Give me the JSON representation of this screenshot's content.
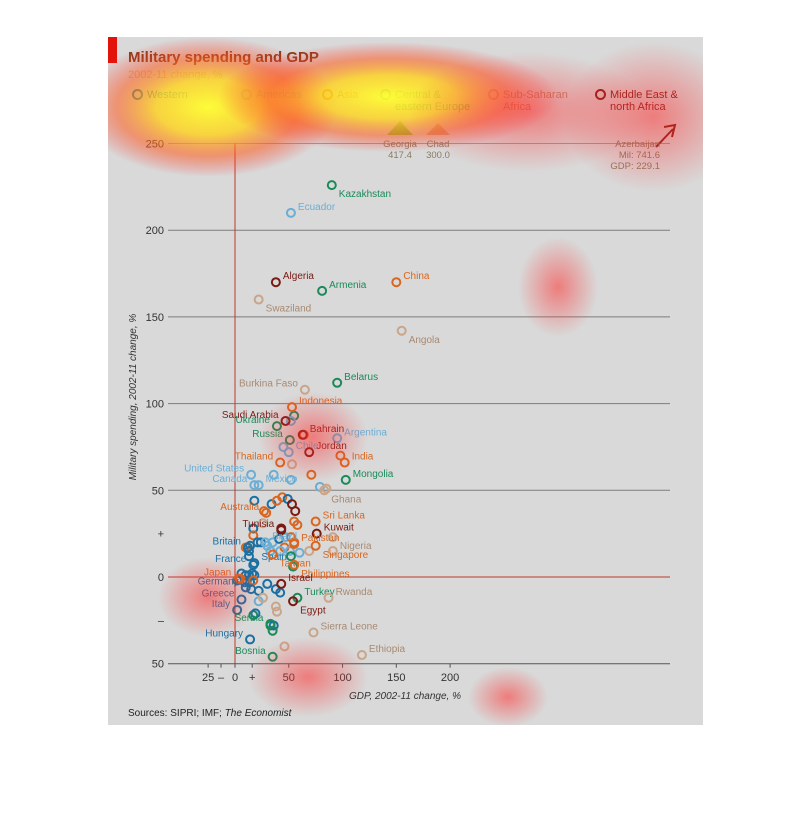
{
  "chart_data": {
    "type": "scatter",
    "title": "Military spending and GDP",
    "subtitle": "2002-11 change, %",
    "xlabel": "GDP, 2002-11 change, %",
    "ylabel": "Military spending, 2002-11 change, %",
    "xlim": [
      -25,
      200
    ],
    "ylim": [
      -50,
      250
    ],
    "x_ticks": [
      "25",
      "–",
      "0",
      "+",
      "50",
      "100",
      "150",
      "200"
    ],
    "y_ticks": [
      "50",
      "–",
      "0",
      "+",
      "50",
      "100",
      "150",
      "200",
      "250"
    ],
    "grid": "horizontal",
    "legend_position": "top",
    "groups": [
      {
        "key": "western",
        "name": "Western",
        "color": "#1a6fa3"
      },
      {
        "key": "americas",
        "name": "Americas",
        "color": "#6aaed6"
      },
      {
        "key": "asia",
        "name": "Asia",
        "color": "#d9661f"
      },
      {
        "key": "cee",
        "name": "Central & eastern Europe",
        "color": "#1a8a5a"
      },
      {
        "key": "ssa",
        "name": "Sub-Saharan Africa",
        "color": "#c9a58a"
      },
      {
        "key": "mena",
        "name": "Middle East & north Africa",
        "color": "#7a1a12"
      }
    ],
    "legend_text": {
      "western": "Western",
      "americas": "Americas",
      "asia": "Asia",
      "cee_1": "Central &",
      "cee_2": "eastern Europe",
      "ssa_1": "Sub-Saharan",
      "ssa_2": "Africa",
      "mena_1": "Middle East &",
      "mena_2": "north Africa"
    },
    "labeled_points": [
      {
        "label": "Kazakhstan",
        "x": 90,
        "y": 226,
        "group": "cee"
      },
      {
        "label": "Ecuador",
        "x": 52,
        "y": 210,
        "group": "americas"
      },
      {
        "label": "Algeria",
        "x": 38,
        "y": 170,
        "group": "mena"
      },
      {
        "label": "China",
        "x": 150,
        "y": 170,
        "group": "asia"
      },
      {
        "label": "Armenia",
        "x": 81,
        "y": 165,
        "group": "cee"
      },
      {
        "label": "Swaziland",
        "x": 22,
        "y": 160,
        "group": "ssa"
      },
      {
        "label": "Angola",
        "x": 155,
        "y": 142,
        "group": "ssa"
      },
      {
        "label": "Belarus",
        "x": 95,
        "y": 112,
        "group": "cee"
      },
      {
        "label": "Burkina Faso",
        "x": 65,
        "y": 108,
        "group": "ssa"
      },
      {
        "label": "Saudi Arabia",
        "x": 47,
        "y": 90,
        "group": "mena"
      },
      {
        "label": "Indonesia",
        "x": 53,
        "y": 98,
        "group": "asia"
      },
      {
        "label": "Ukraine",
        "x": 39,
        "y": 87,
        "group": "cee"
      },
      {
        "label": "Bahrain",
        "x": 63,
        "y": 82,
        "group": "mena"
      },
      {
        "label": "Argentina",
        "x": 95,
        "y": 80,
        "group": "americas"
      },
      {
        "label": "Russia",
        "x": 51,
        "y": 79,
        "group": "cee"
      },
      {
        "label": "Chile",
        "x": 50,
        "y": 72,
        "group": "americas"
      },
      {
        "label": "Jordan",
        "x": 69,
        "y": 72,
        "group": "mena"
      },
      {
        "label": "Thailand",
        "x": 42,
        "y": 66,
        "group": "asia"
      },
      {
        "label": "India",
        "x": 102,
        "y": 66,
        "group": "asia"
      },
      {
        "label": "United States",
        "x": 15,
        "y": 59,
        "group": "americas"
      },
      {
        "label": "Mongolia",
        "x": 103,
        "y": 56,
        "group": "cee"
      },
      {
        "label": "Ghana",
        "x": 83,
        "y": 50,
        "group": "ssa"
      },
      {
        "label": "Canada",
        "x": 18,
        "y": 53,
        "group": "americas"
      },
      {
        "label": "Mexico",
        "x": 22,
        "y": 53,
        "group": "americas"
      },
      {
        "label": "Australia",
        "x": 29,
        "y": 37,
        "group": "asia"
      },
      {
        "label": "Sri Lanka",
        "x": 75,
        "y": 32,
        "group": "asia"
      },
      {
        "label": "Tunisia",
        "x": 43,
        "y": 27,
        "group": "mena"
      },
      {
        "label": "Kuwait",
        "x": 76,
        "y": 25,
        "group": "mena"
      },
      {
        "label": "Nigeria",
        "x": 91,
        "y": 23,
        "group": "ssa"
      },
      {
        "label": "Britain",
        "x": 12,
        "y": 17,
        "group": "western"
      },
      {
        "label": "Brazil",
        "x": 28,
        "y": 20,
        "group": "americas"
      },
      {
        "label": "Pakistan",
        "x": 55,
        "y": 19,
        "group": "asia"
      },
      {
        "label": "Singapore",
        "x": 75,
        "y": 18,
        "group": "asia"
      },
      {
        "label": "France",
        "x": 17,
        "y": 7,
        "group": "western"
      },
      {
        "label": "Spain",
        "x": 18,
        "y": 8,
        "group": "western"
      },
      {
        "label": "Taiwan",
        "x": 35,
        "y": 13,
        "group": "asia"
      },
      {
        "label": "Philippines",
        "x": 55,
        "y": 7,
        "group": "asia"
      },
      {
        "label": "Japan",
        "x": 3,
        "y": -1,
        "group": "asia"
      },
      {
        "label": "Israel",
        "x": 43,
        "y": -4,
        "group": "mena"
      },
      {
        "label": "Germany",
        "x": 10,
        "y": -6,
        "group": "western"
      },
      {
        "label": "Turkey",
        "x": 58,
        "y": -12,
        "group": "cee"
      },
      {
        "label": "Rwanda",
        "x": 87,
        "y": -12,
        "group": "ssa"
      },
      {
        "label": "Greece",
        "x": 6,
        "y": -13,
        "group": "western"
      },
      {
        "label": "Egypt",
        "x": 54,
        "y": -14,
        "group": "mena"
      },
      {
        "label": "Italy",
        "x": 2,
        "y": -19,
        "group": "western"
      },
      {
        "label": "Serbia",
        "x": 33,
        "y": -27,
        "group": "cee"
      },
      {
        "label": "Sierra Leone",
        "x": 73,
        "y": -32,
        "group": "ssa"
      },
      {
        "label": "Hungary",
        "x": 14,
        "y": -36,
        "group": "western"
      },
      {
        "label": "Bosnia",
        "x": 35,
        "y": -46,
        "group": "cee"
      },
      {
        "label": "Ethiopia",
        "x": 118,
        "y": -45,
        "group": "ssa"
      }
    ],
    "unlabeled_points": [
      {
        "x": 55,
        "y": 93,
        "group": "cee"
      },
      {
        "x": 52,
        "y": 90,
        "group": "americas"
      },
      {
        "x": 64,
        "y": 82,
        "group": "asia"
      },
      {
        "x": 45,
        "y": 75,
        "group": "americas"
      },
      {
        "x": 53,
        "y": 65,
        "group": "ssa"
      },
      {
        "x": 71,
        "y": 59,
        "group": "asia"
      },
      {
        "x": 52,
        "y": 56,
        "group": "americas"
      },
      {
        "x": 36,
        "y": 59,
        "group": "americas"
      },
      {
        "x": 79,
        "y": 52,
        "group": "americas"
      },
      {
        "x": 85,
        "y": 51,
        "group": "ssa"
      },
      {
        "x": 98,
        "y": 70,
        "group": "asia"
      },
      {
        "x": 18,
        "y": 44,
        "group": "western"
      },
      {
        "x": 34,
        "y": 42,
        "group": "western"
      },
      {
        "x": 39,
        "y": 44,
        "group": "asia"
      },
      {
        "x": 44,
        "y": 46,
        "group": "asia"
      },
      {
        "x": 49,
        "y": 45,
        "group": "western"
      },
      {
        "x": 53,
        "y": 42,
        "group": "mena"
      },
      {
        "x": 56,
        "y": 38,
        "group": "mena"
      },
      {
        "x": 27,
        "y": 38,
        "group": "asia"
      },
      {
        "x": 26,
        "y": 31,
        "group": "ssa"
      },
      {
        "x": 55,
        "y": 32,
        "group": "asia"
      },
      {
        "x": 58,
        "y": 30,
        "group": "asia"
      },
      {
        "x": 43,
        "y": 28,
        "group": "mena"
      },
      {
        "x": 17,
        "y": 28,
        "group": "western"
      },
      {
        "x": 17,
        "y": 24,
        "group": "asia"
      },
      {
        "x": 21,
        "y": 20,
        "group": "western"
      },
      {
        "x": 24,
        "y": 20,
        "group": "western"
      },
      {
        "x": 30,
        "y": 18,
        "group": "americas"
      },
      {
        "x": 35,
        "y": 20,
        "group": "americas"
      },
      {
        "x": 41,
        "y": 22,
        "group": "western"
      },
      {
        "x": 47,
        "y": 23,
        "group": "americas"
      },
      {
        "x": 52,
        "y": 23,
        "group": "asia"
      },
      {
        "x": 55,
        "y": 20,
        "group": "asia"
      },
      {
        "x": 46,
        "y": 17,
        "group": "asia"
      },
      {
        "x": 42,
        "y": 15,
        "group": "americas"
      },
      {
        "x": 51,
        "y": 15,
        "group": "americas"
      },
      {
        "x": 60,
        "y": 14,
        "group": "americas"
      },
      {
        "x": 69,
        "y": 15,
        "group": "ssa"
      },
      {
        "x": 91,
        "y": 15,
        "group": "ssa"
      },
      {
        "x": 33,
        "y": 15,
        "group": "americas"
      },
      {
        "x": 14,
        "y": 18,
        "group": "western"
      },
      {
        "x": 10,
        "y": 17,
        "group": "asia"
      },
      {
        "x": 13,
        "y": 15,
        "group": "western"
      },
      {
        "x": 52,
        "y": 12,
        "group": "cee"
      },
      {
        "x": 54,
        "y": 6,
        "group": "cee"
      },
      {
        "x": 13,
        "y": 12,
        "group": "western"
      },
      {
        "x": 16,
        "y": 2,
        "group": "western"
      },
      {
        "x": 18,
        "y": 1,
        "group": "western"
      },
      {
        "x": 13,
        "y": 1,
        "group": "western"
      },
      {
        "x": 10,
        "y": 1,
        "group": "western"
      },
      {
        "x": 6,
        "y": 2,
        "group": "western"
      },
      {
        "x": 11,
        "y": -2,
        "group": "western"
      },
      {
        "x": 14,
        "y": -3,
        "group": "western"
      },
      {
        "x": 9,
        "y": -3,
        "group": "western"
      },
      {
        "x": 2,
        "y": -2,
        "group": "western"
      },
      {
        "x": 5,
        "y": -1,
        "group": "asia"
      },
      {
        "x": 17,
        "y": -2,
        "group": "asia"
      },
      {
        "x": 15,
        "y": -7,
        "group": "western"
      },
      {
        "x": 22,
        "y": -8,
        "group": "western"
      },
      {
        "x": 30,
        "y": -4,
        "group": "western"
      },
      {
        "x": 38,
        "y": -7,
        "group": "western"
      },
      {
        "x": 42,
        "y": -9,
        "group": "western"
      },
      {
        "x": 22,
        "y": -14,
        "group": "americas"
      },
      {
        "x": 26,
        "y": -12,
        "group": "ssa"
      },
      {
        "x": 38,
        "y": -17,
        "group": "ssa"
      },
      {
        "x": 39,
        "y": -20,
        "group": "ssa"
      },
      {
        "x": 17,
        "y": -22,
        "group": "cee"
      },
      {
        "x": 19,
        "y": -21,
        "group": "western"
      },
      {
        "x": 33,
        "y": -28,
        "group": "cee"
      },
      {
        "x": 36,
        "y": -28,
        "group": "western"
      },
      {
        "x": 35,
        "y": -31,
        "group": "cee"
      },
      {
        "x": 46,
        "y": -40,
        "group": "ssa"
      }
    ],
    "off_scale": [
      {
        "label": "Georgia",
        "values": "417.4",
        "group": "cee"
      },
      {
        "label": "Chad",
        "values": "300.0",
        "group": "ssa"
      },
      {
        "label": "Azerbaijan",
        "line1": "Mil: 741.6",
        "line2": "GDP: 229.1",
        "group": "cee"
      }
    ],
    "source": "Sources: SIPRI; IMF; ",
    "source_italic": "The Economist"
  }
}
